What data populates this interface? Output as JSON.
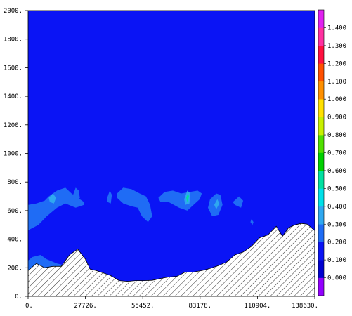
{
  "chart_data": {
    "type": "heatmap",
    "title": "",
    "xlabel": "",
    "ylabel": "",
    "xlim": [
      0,
      138630
    ],
    "ylim": [
      0,
      2000
    ],
    "x_ticks": [
      0,
      27726,
      55452,
      83178,
      110904,
      138630
    ],
    "x_tick_labels": [
      "0.",
      "27726.",
      "55452.",
      "83178.",
      "110904.",
      "138630."
    ],
    "y_ticks": [
      0,
      200,
      400,
      600,
      800,
      1000,
      1200,
      1400,
      1600,
      1800,
      2000
    ],
    "y_tick_labels": [
      "0.",
      "200.",
      "400.",
      "600.",
      "800.",
      "1000.",
      "1200.",
      "1400.",
      "1600.",
      "1800.",
      "2000."
    ],
    "background_level_color": "#0a14f5",
    "colorbar": {
      "levels": [
        0.0,
        0.1,
        0.2,
        0.3,
        0.4,
        0.5,
        0.6,
        0.7,
        0.8,
        0.9,
        1.0,
        1.1,
        1.2,
        1.3,
        1.4
      ],
      "labels": [
        "0.000",
        "0.100",
        "0.200",
        "0.300",
        "0.400",
        "0.500",
        "0.600",
        "0.700",
        "0.800",
        "0.900",
        "1.000",
        "1.100",
        "1.200",
        "1.300",
        "1.400"
      ],
      "colors": [
        "#9300ff",
        "#0000d0",
        "#0a14f5",
        "#1f6cf5",
        "#2fa8f0",
        "#00e0e8",
        "#00e0a0",
        "#00d000",
        "#50e000",
        "#c8f000",
        "#ffe000",
        "#ff9000",
        "#ff5000",
        "#ff1040",
        "#ff30a0",
        "#e020f0"
      ]
    },
    "terrain": {
      "x": [
        0,
        4000,
        8000,
        12000,
        16000,
        20000,
        24000,
        27726,
        30000,
        33000,
        36000,
        40000,
        44000,
        48000,
        52000,
        56000,
        60000,
        64000,
        68000,
        72000,
        76000,
        80000,
        84000,
        88000,
        92000,
        96000,
        100000,
        104000,
        108000,
        112000,
        116000,
        120000,
        123000,
        126000,
        129000,
        132000,
        135000,
        138630
      ],
      "y": [
        180,
        230,
        200,
        210,
        210,
        290,
        330,
        260,
        190,
        180,
        165,
        145,
        110,
        105,
        110,
        110,
        112,
        125,
        135,
        140,
        170,
        170,
        180,
        195,
        215,
        240,
        290,
        310,
        350,
        410,
        430,
        490,
        420,
        480,
        500,
        510,
        505,
        460
      ]
    },
    "contours": [
      {
        "level": 0.2,
        "x": [
          0,
          2000,
          6000,
          9000,
          14000,
          17000,
          20000,
          20000,
          15000,
          10000,
          6000,
          2000,
          0
        ],
        "y": [
          250,
          275,
          290,
          260,
          230,
          220,
          215,
          200,
          195,
          200,
          195,
          185,
          180
        ]
      },
      {
        "level": 0.2,
        "x": [
          0,
          4000,
          8000,
          10000,
          14000,
          18000,
          21000,
          24000,
          27000,
          27000,
          23000,
          18000,
          14000,
          9000,
          5000,
          1000,
          0
        ],
        "y": [
          640,
          650,
          670,
          700,
          740,
          760,
          720,
          690,
          660,
          640,
          620,
          650,
          620,
          560,
          500,
          470,
          460
        ]
      },
      {
        "level": 0.2,
        "x": [
          21500,
          23000,
          24500,
          25000,
          23500,
          22000
        ],
        "y": [
          700,
          760,
          740,
          690,
          660,
          680
        ]
      },
      {
        "level": 0.2,
        "x": [
          38000,
          39500,
          40500,
          40000,
          38500
        ],
        "y": [
          680,
          740,
          710,
          650,
          660
        ]
      },
      {
        "level": 0.2,
        "x": [
          43000,
          46000,
          50000,
          54000,
          57000,
          59000,
          60000,
          58000,
          55000,
          53000,
          50000,
          46000,
          43000
        ],
        "y": [
          720,
          760,
          750,
          720,
          700,
          640,
          560,
          520,
          560,
          620,
          630,
          650,
          690
        ]
      },
      {
        "level": 0.2,
        "x": [
          63000,
          66000,
          70000,
          74000,
          78000,
          82000,
          84000,
          83000,
          80000,
          77000,
          73000,
          68000,
          64000
        ],
        "y": [
          690,
          730,
          740,
          720,
          730,
          740,
          720,
          680,
          640,
          600,
          620,
          660,
          660
        ]
      },
      {
        "level": 0.2,
        "x": [
          88000,
          91000,
          93000,
          94000,
          92000,
          89000,
          87000
        ],
        "y": [
          680,
          720,
          710,
          640,
          570,
          560,
          620
        ]
      },
      {
        "level": 0.2,
        "x": [
          99000,
          102000,
          104000,
          103000,
          100000
        ],
        "y": [
          660,
          700,
          670,
          620,
          640
        ]
      },
      {
        "level": 0.2,
        "x": [
          108000,
          109000,
          108500,
          107500
        ],
        "y": [
          540,
          520,
          500,
          520
        ]
      },
      {
        "level": 0.3,
        "x": [
          10000,
          12000,
          13500,
          12500,
          10500
        ],
        "y": [
          690,
          720,
          690,
          650,
          660
        ]
      },
      {
        "level": 0.3,
        "x": [
          75500,
          77000,
          78500,
          78000,
          76000
        ],
        "y": [
          680,
          740,
          720,
          650,
          640
        ]
      },
      {
        "level": 0.3,
        "x": [
          90000,
          91500,
          92500,
          91000
        ],
        "y": [
          640,
          680,
          650,
          610
        ]
      },
      {
        "level": 0.5,
        "x": [
          76500,
          77300,
          77800,
          77000
        ],
        "y": [
          690,
          720,
          700,
          660
        ]
      }
    ]
  }
}
